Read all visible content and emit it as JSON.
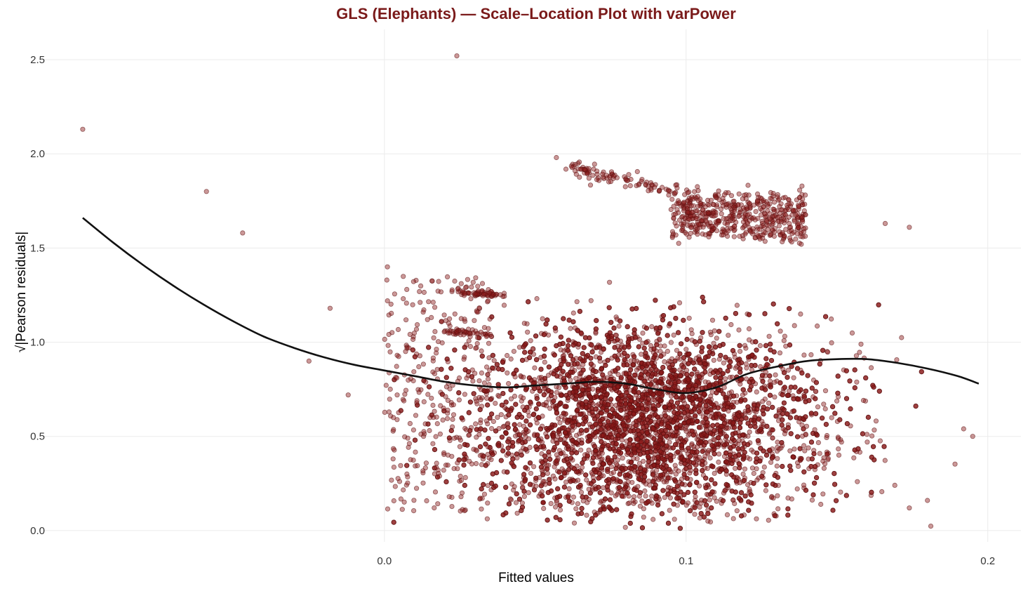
{
  "chart_data": {
    "type": "scatter",
    "title": "GLS (Elephants) — Scale–Location Plot with varPower",
    "xlabel": "Fitted values",
    "ylabel": "√|Pearson residuals|",
    "xlim": [
      -0.113,
      0.211
    ],
    "ylim": [
      -0.06,
      2.66
    ],
    "x_ticks": [
      "0.0",
      "0.1",
      "0.2"
    ],
    "x_tick_values": [
      0.0,
      0.1,
      0.2
    ],
    "y_ticks": [
      "0.0",
      "0.5",
      "1.0",
      "1.5",
      "2.0",
      "2.5"
    ],
    "y_tick_values": [
      0.0,
      0.5,
      1.0,
      1.5,
      2.0,
      2.5
    ],
    "grid": true,
    "legend": "none",
    "colors": {
      "title": "#7a1a1a",
      "points_fill": "#8b1a1a",
      "points_stroke": "#5a1010",
      "smooth_line": "#111111"
    },
    "points_highlighted": [
      {
        "x": -0.1,
        "y": 2.13
      },
      {
        "x": -0.059,
        "y": 1.8
      },
      {
        "x": -0.047,
        "y": 1.58
      },
      {
        "x": 0.024,
        "y": 2.52
      },
      {
        "x": 0.057,
        "y": 1.98
      },
      {
        "x": -0.025,
        "y": 0.9
      },
      {
        "x": -0.018,
        "y": 1.18
      },
      {
        "x": -0.012,
        "y": 0.72
      },
      {
        "x": 0.001,
        "y": 1.4
      },
      {
        "x": 0.003,
        "y": 0.6
      },
      {
        "x": 0.195,
        "y": 0.5
      },
      {
        "x": 0.192,
        "y": 0.54
      },
      {
        "x": 0.18,
        "y": 0.16
      },
      {
        "x": 0.174,
        "y": 1.61
      },
      {
        "x": 0.166,
        "y": 1.63
      },
      {
        "x": 0.174,
        "y": 0.12
      }
    ],
    "smooth_line": {
      "x": [
        -0.1,
        -0.09,
        -0.08,
        -0.07,
        -0.06,
        -0.05,
        -0.04,
        -0.03,
        -0.02,
        -0.01,
        0.0,
        0.01,
        0.02,
        0.03,
        0.04,
        0.05,
        0.06,
        0.07,
        0.08,
        0.09,
        0.1,
        0.11,
        0.12,
        0.13,
        0.14,
        0.15,
        0.16,
        0.17,
        0.18,
        0.19,
        0.197
      ],
      "y": [
        1.66,
        1.53,
        1.41,
        1.3,
        1.2,
        1.11,
        1.03,
        0.97,
        0.92,
        0.88,
        0.85,
        0.82,
        0.79,
        0.77,
        0.76,
        0.77,
        0.78,
        0.79,
        0.78,
        0.75,
        0.73,
        0.76,
        0.83,
        0.87,
        0.9,
        0.91,
        0.91,
        0.89,
        0.86,
        0.82,
        0.78
      ]
    }
  }
}
